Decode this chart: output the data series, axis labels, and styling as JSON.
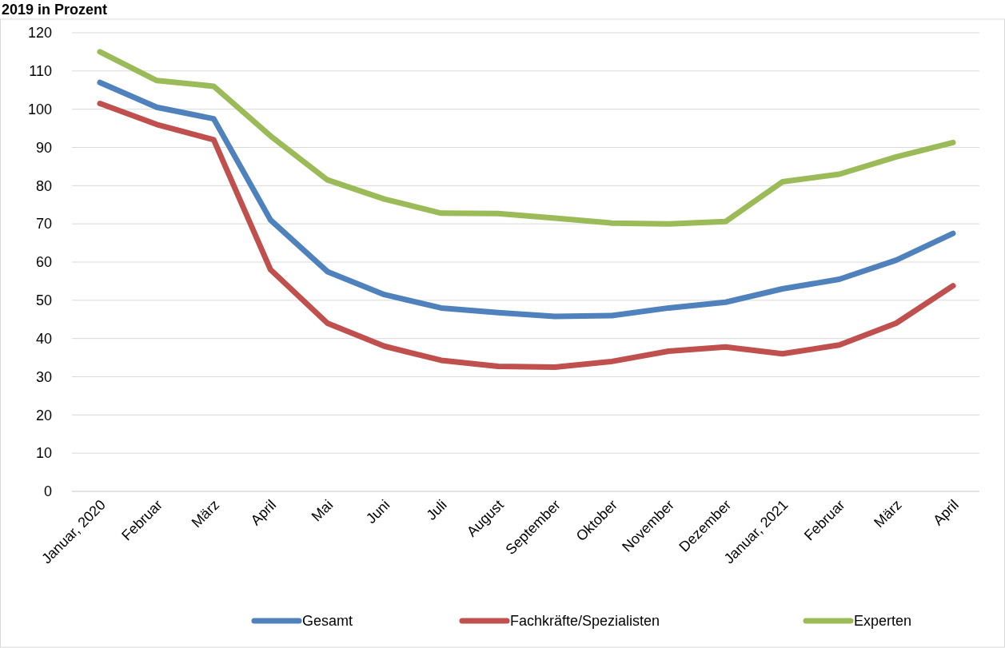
{
  "chart_data": {
    "type": "line",
    "title": "2019 in Prozent",
    "categories": [
      "Januar, 2020",
      "Februar",
      "März",
      "April",
      "Mai",
      "Juni",
      "Juli",
      "August",
      "September",
      "Oktober",
      "November",
      "Dezember",
      "Januar, 2021",
      "Februar",
      "März",
      "April"
    ],
    "series": [
      {
        "name": "Gesamt",
        "color": "#4f81bd",
        "values": [
          107,
          100.5,
          97.5,
          71,
          57.5,
          51.5,
          48,
          46.8,
          45.8,
          46,
          48,
          49.5,
          53,
          55.5,
          60.5,
          67.5
        ]
      },
      {
        "name": "Fachkräfte/Spezialisten",
        "color": "#c0504d",
        "values": [
          101.5,
          96,
          92,
          58,
          44,
          38,
          34.3,
          32.7,
          32.5,
          34,
          36.7,
          37.8,
          36,
          38.3,
          44,
          53.8
        ]
      },
      {
        "name": "Experten",
        "color": "#9bbb59",
        "values": [
          115,
          107.5,
          106,
          93,
          81.5,
          76.5,
          72.8,
          72.7,
          71.5,
          70.2,
          70,
          70.6,
          81,
          83,
          87.5,
          91.3
        ]
      }
    ],
    "ylim": [
      0,
      120
    ],
    "yticks": [
      0,
      10,
      20,
      30,
      40,
      50,
      60,
      70,
      80,
      90,
      100,
      110,
      120
    ],
    "grid": "y",
    "legend": "bottom",
    "marker": "none",
    "line_style": "solid"
  }
}
